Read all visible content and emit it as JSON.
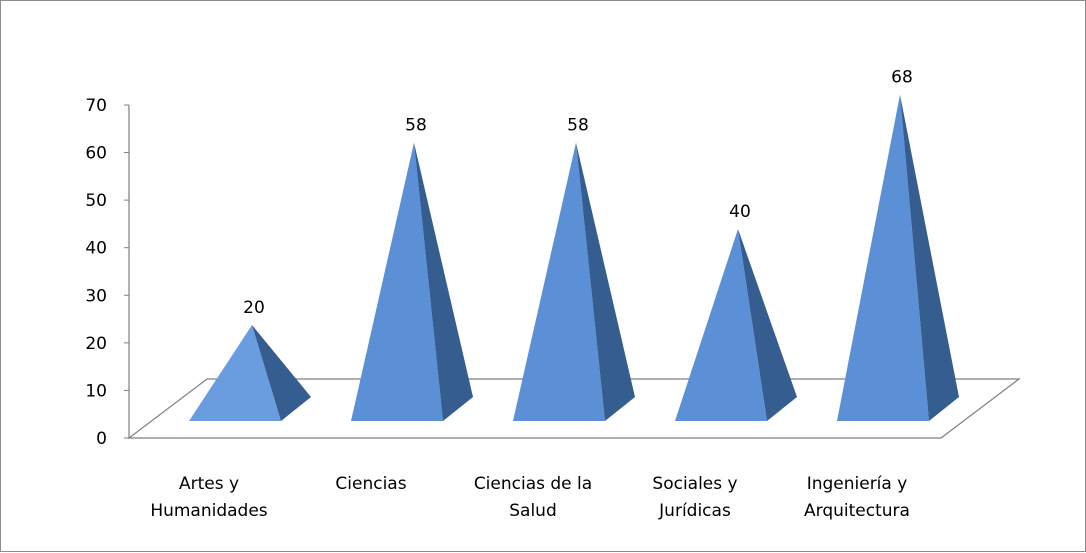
{
  "chart_data": {
    "type": "bar",
    "style": "3d-pyramid",
    "categories": [
      [
        "Artes y",
        "Humanidades"
      ],
      [
        "Ciencias"
      ],
      [
        "Ciencias de la",
        "Salud"
      ],
      [
        "Sociales y",
        "Jurídicas"
      ],
      [
        "Ingeniería y",
        "Arquitectura"
      ]
    ],
    "values": [
      20,
      58,
      58,
      40,
      68
    ],
    "data_labels": [
      "20",
      "58",
      "58",
      "40",
      "68"
    ],
    "ylim": [
      0,
      70
    ],
    "yticks": [
      0,
      10,
      20,
      30,
      40,
      50,
      60,
      70
    ],
    "ytick_labels": [
      "0",
      "10",
      "20",
      "30",
      "40",
      "50",
      "60",
      "70"
    ],
    "title": "",
    "xlabel": "",
    "ylabel": "",
    "grid": false,
    "legend": false,
    "colors": {
      "front_face": "#5b8fd6",
      "front_face_light": "#6a9de0",
      "side_face": "#355d90",
      "floor_edge": "#7f7f7f",
      "axis": "#7f7f7f"
    }
  }
}
